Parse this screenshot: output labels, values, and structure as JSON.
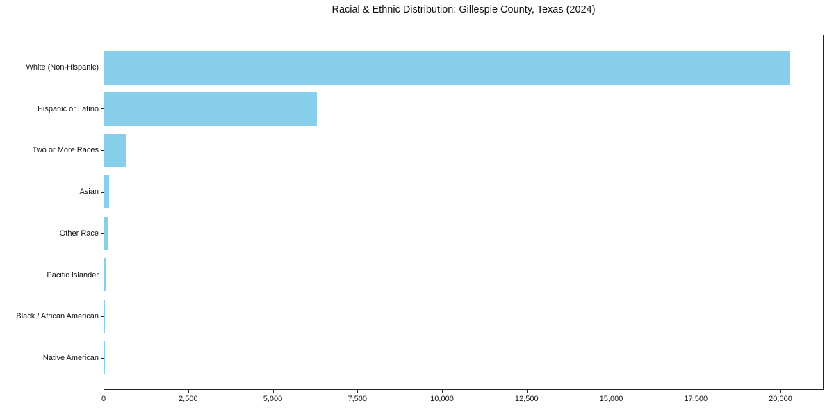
{
  "chart_data": {
    "type": "bar",
    "orientation": "horizontal",
    "title": "Racial & Ethnic Distribution: Gillespie County, Texas (2024)",
    "categories": [
      "White (Non-Hispanic)",
      "Hispanic or Latino",
      "Two or More Races",
      "Asian",
      "Other Race",
      "Pacific Islander",
      "Black / African American",
      "Native American"
    ],
    "values": [
      20300,
      6300,
      650,
      135,
      120,
      55,
      25,
      12
    ],
    "xlabel": "",
    "ylabel": "",
    "xlim": [
      0,
      21273
    ],
    "x_ticks": [
      0,
      2500,
      5000,
      7500,
      10000,
      12500,
      15000,
      17500,
      20000
    ],
    "x_tick_labels": [
      "0",
      "2,500",
      "5,000",
      "7,500",
      "10,000",
      "12,500",
      "15,000",
      "17,500",
      "20,000"
    ],
    "bar_color": "#87CEEB",
    "axis_color": "#222222",
    "text_color": "#111111",
    "background_color": "#ffffff",
    "grid": false,
    "legend": null
  }
}
